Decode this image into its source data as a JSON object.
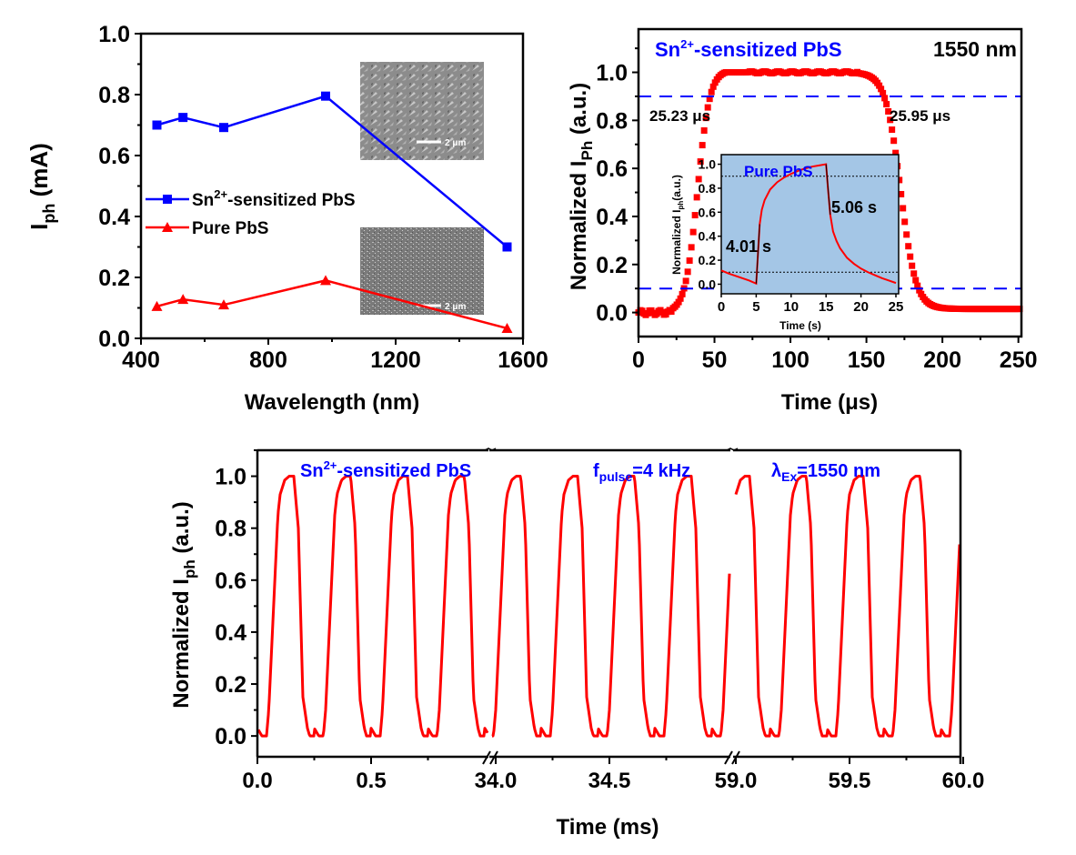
{
  "chart_data": [
    {
      "id": "photocurrent-vs-wavelength",
      "type": "line",
      "title": "",
      "xlabel": "Wavelength (nm)",
      "ylabel": "I_ph (mA)",
      "ylabel_main": "I",
      "ylabel_sub": "ph",
      "ylabel_unit": " (mA)",
      "xlim": [
        400,
        1600
      ],
      "ylim": [
        0.0,
        1.0
      ],
      "xticks": [
        400,
        800,
        1200,
        1600
      ],
      "xtick_labels": [
        "400",
        "800",
        "1200",
        "1600"
      ],
      "yticks": [
        0.0,
        0.2,
        0.4,
        0.6,
        0.8,
        1.0
      ],
      "ytick_labels": [
        "0.0",
        "0.2",
        "0.4",
        "0.6",
        "0.8",
        "1.0"
      ],
      "grid": false,
      "legend_position": "center-left",
      "series": [
        {
          "name": "Sn2+-sensitized PbS",
          "legend_main": "Sn",
          "legend_sup": "2+",
          "legend_rest": "-sensitized PbS",
          "marker": "square",
          "color": "#0000ff",
          "x": [
            450,
            532,
            660,
            980,
            1550
          ],
          "y": [
            0.7,
            0.725,
            0.692,
            0.795,
            0.3
          ]
        },
        {
          "name": "Pure PbS",
          "legend_main": "Pure PbS",
          "marker": "triangle",
          "color": "#ff0000",
          "x": [
            450,
            532,
            660,
            980,
            1550
          ],
          "y": [
            0.105,
            0.128,
            0.11,
            0.19,
            0.033
          ]
        }
      ],
      "insets": [
        {
          "type": "image",
          "description": "SEM image of Sn2+-sensitized PbS film (leaf-like grains)",
          "scale_bar": "2 μm"
        },
        {
          "type": "image",
          "description": "SEM image of pure PbS film (fine grains)",
          "scale_bar": "2 μm"
        }
      ]
    },
    {
      "id": "transient-response-1550nm",
      "type": "scatter",
      "title": "",
      "xlabel": "Time (μs)",
      "ylabel": "Normalized I_Ph (a.u.)",
      "ylabel_main": "Normalized I",
      "ylabel_sub": "Ph",
      "ylabel_unit": " (a.u.)",
      "xlim": [
        0,
        252
      ],
      "ylim": [
        -0.1,
        1.18
      ],
      "xticks": [
        0,
        50,
        100,
        150,
        200,
        250
      ],
      "xtick_labels": [
        "0",
        "50",
        "100",
        "150",
        "200",
        "250"
      ],
      "yticks": [
        0.0,
        0.2,
        0.4,
        0.6,
        0.8,
        1.0
      ],
      "ytick_labels": [
        "0.0",
        "0.2",
        "0.4",
        "0.6",
        "0.8",
        "1.0"
      ],
      "grid": false,
      "reference_lines": [
        0.9,
        0.1
      ],
      "reference_line_color": "#0000ff",
      "annotations": {
        "sample_main": "Sn",
        "sample_sup": "2+",
        "sample_rest": "-sensitized PbS",
        "wavelength": "1550 nm",
        "rise_time": "25.23 μs",
        "fall_time": "25.95 μs"
      },
      "series": [
        {
          "name": "Sn2+-sensitized PbS",
          "color": "#ff0000",
          "marker": "square",
          "rise_start": 22,
          "rise_end": 62,
          "fall_start": 145,
          "fall_end": 195,
          "plateau": 1.0,
          "baseline": 0.0
        }
      ],
      "inset": {
        "type": "line",
        "label": "Pure PbS",
        "xlabel": "Time (s)",
        "ylabel_main": "Normalized I",
        "ylabel_sub": "ph",
        "ylabel_unit": "(a.u.)",
        "xlim": [
          0,
          25
        ],
        "ylim": [
          -0.08,
          1.08
        ],
        "xticks": [
          0,
          5,
          10,
          15,
          20,
          25
        ],
        "xtick_labels": [
          "0",
          "5",
          "10",
          "15",
          "20",
          "25"
        ],
        "yticks": [
          0.0,
          0.2,
          0.4,
          0.6,
          0.8,
          1.0
        ],
        "ytick_labels": [
          "0.0",
          "0.2",
          "0.4",
          "0.6",
          "0.8",
          "1.0"
        ],
        "reference_lines": [
          0.9,
          0.1
        ],
        "rise_time": "4.01 s",
        "fall_time": "5.06 s",
        "background": "#a4c6e6",
        "curve": {
          "x": [
            0,
            1,
            2,
            3,
            4,
            5,
            5.2,
            5.5,
            5.8,
            6.2,
            7,
            8,
            9,
            10,
            11,
            12,
            13,
            14,
            15,
            15.3,
            15.6,
            16,
            16.5,
            17,
            18,
            19,
            20,
            21,
            22,
            23,
            24,
            25
          ],
          "y": [
            0.115,
            0.09,
            0.07,
            0.05,
            0.03,
            0.005,
            0.2,
            0.5,
            0.62,
            0.7,
            0.79,
            0.85,
            0.89,
            0.92,
            0.945,
            0.965,
            0.98,
            0.99,
            1.0,
            0.78,
            0.58,
            0.44,
            0.36,
            0.3,
            0.22,
            0.17,
            0.13,
            0.1,
            0.075,
            0.05,
            0.03,
            0.01
          ]
        }
      }
    },
    {
      "id": "pulse-response-4khz",
      "type": "line",
      "title": "",
      "xlabel": "Time (ms)",
      "ylabel": "Normalized I_ph (a.u.)",
      "ylabel_main": "Normalized I",
      "ylabel_sub": "ph",
      "ylabel_unit": " (a.u.)",
      "ylim": [
        -0.08,
        1.1
      ],
      "yticks": [
        0.0,
        0.2,
        0.4,
        0.6,
        0.8,
        1.0
      ],
      "ytick_labels": [
        "0.0",
        "0.2",
        "0.4",
        "0.6",
        "0.8",
        "1.0"
      ],
      "grid": false,
      "broken_axis": true,
      "segments": [
        {
          "xlim": [
            0.0,
            1.02
          ],
          "xticks": [
            0.0,
            0.5
          ],
          "xtick_labels": [
            "0.0",
            "0.5"
          ]
        },
        {
          "xlim": [
            34.0,
            35.03
          ],
          "xticks": [
            34.0,
            34.5
          ],
          "xtick_labels": [
            "34.0",
            "34.5"
          ]
        },
        {
          "xlim": [
            59.0,
            60.0
          ],
          "xticks": [
            59.0,
            59.5,
            60.0
          ],
          "xtick_labels": [
            "59.0",
            "59.5",
            "60.0"
          ]
        }
      ],
      "annotations": {
        "sample_main": "Sn",
        "sample_sup": "2+",
        "sample_rest": "-sensitized PbS",
        "freq_main": "f",
        "freq_sub": "pulse",
        "freq_rest": "=4 kHz",
        "lambda_main": "λ",
        "lambda_sub": "Ex",
        "lambda_rest": "=1550 nm"
      },
      "series": [
        {
          "name": "Normalized photocurrent",
          "color": "#ff0000",
          "frequency_khz": 4,
          "period_ms": 0.25,
          "min": 0.0,
          "max": 1.0,
          "pulse_shape_ms": {
            "t": [
              0.0,
              0.02,
              0.04,
              0.05,
              0.09,
              0.1,
              0.12,
              0.14,
              0.16,
              0.18,
              0.2,
              0.22,
              0.23,
              0.25
            ],
            "y": [
              0.03,
              0.0,
              0.0,
              0.1,
              0.85,
              0.93,
              0.985,
              1.0,
              1.0,
              0.8,
              0.15,
              0.03,
              0.0,
              0.0
            ]
          }
        }
      ]
    }
  ]
}
